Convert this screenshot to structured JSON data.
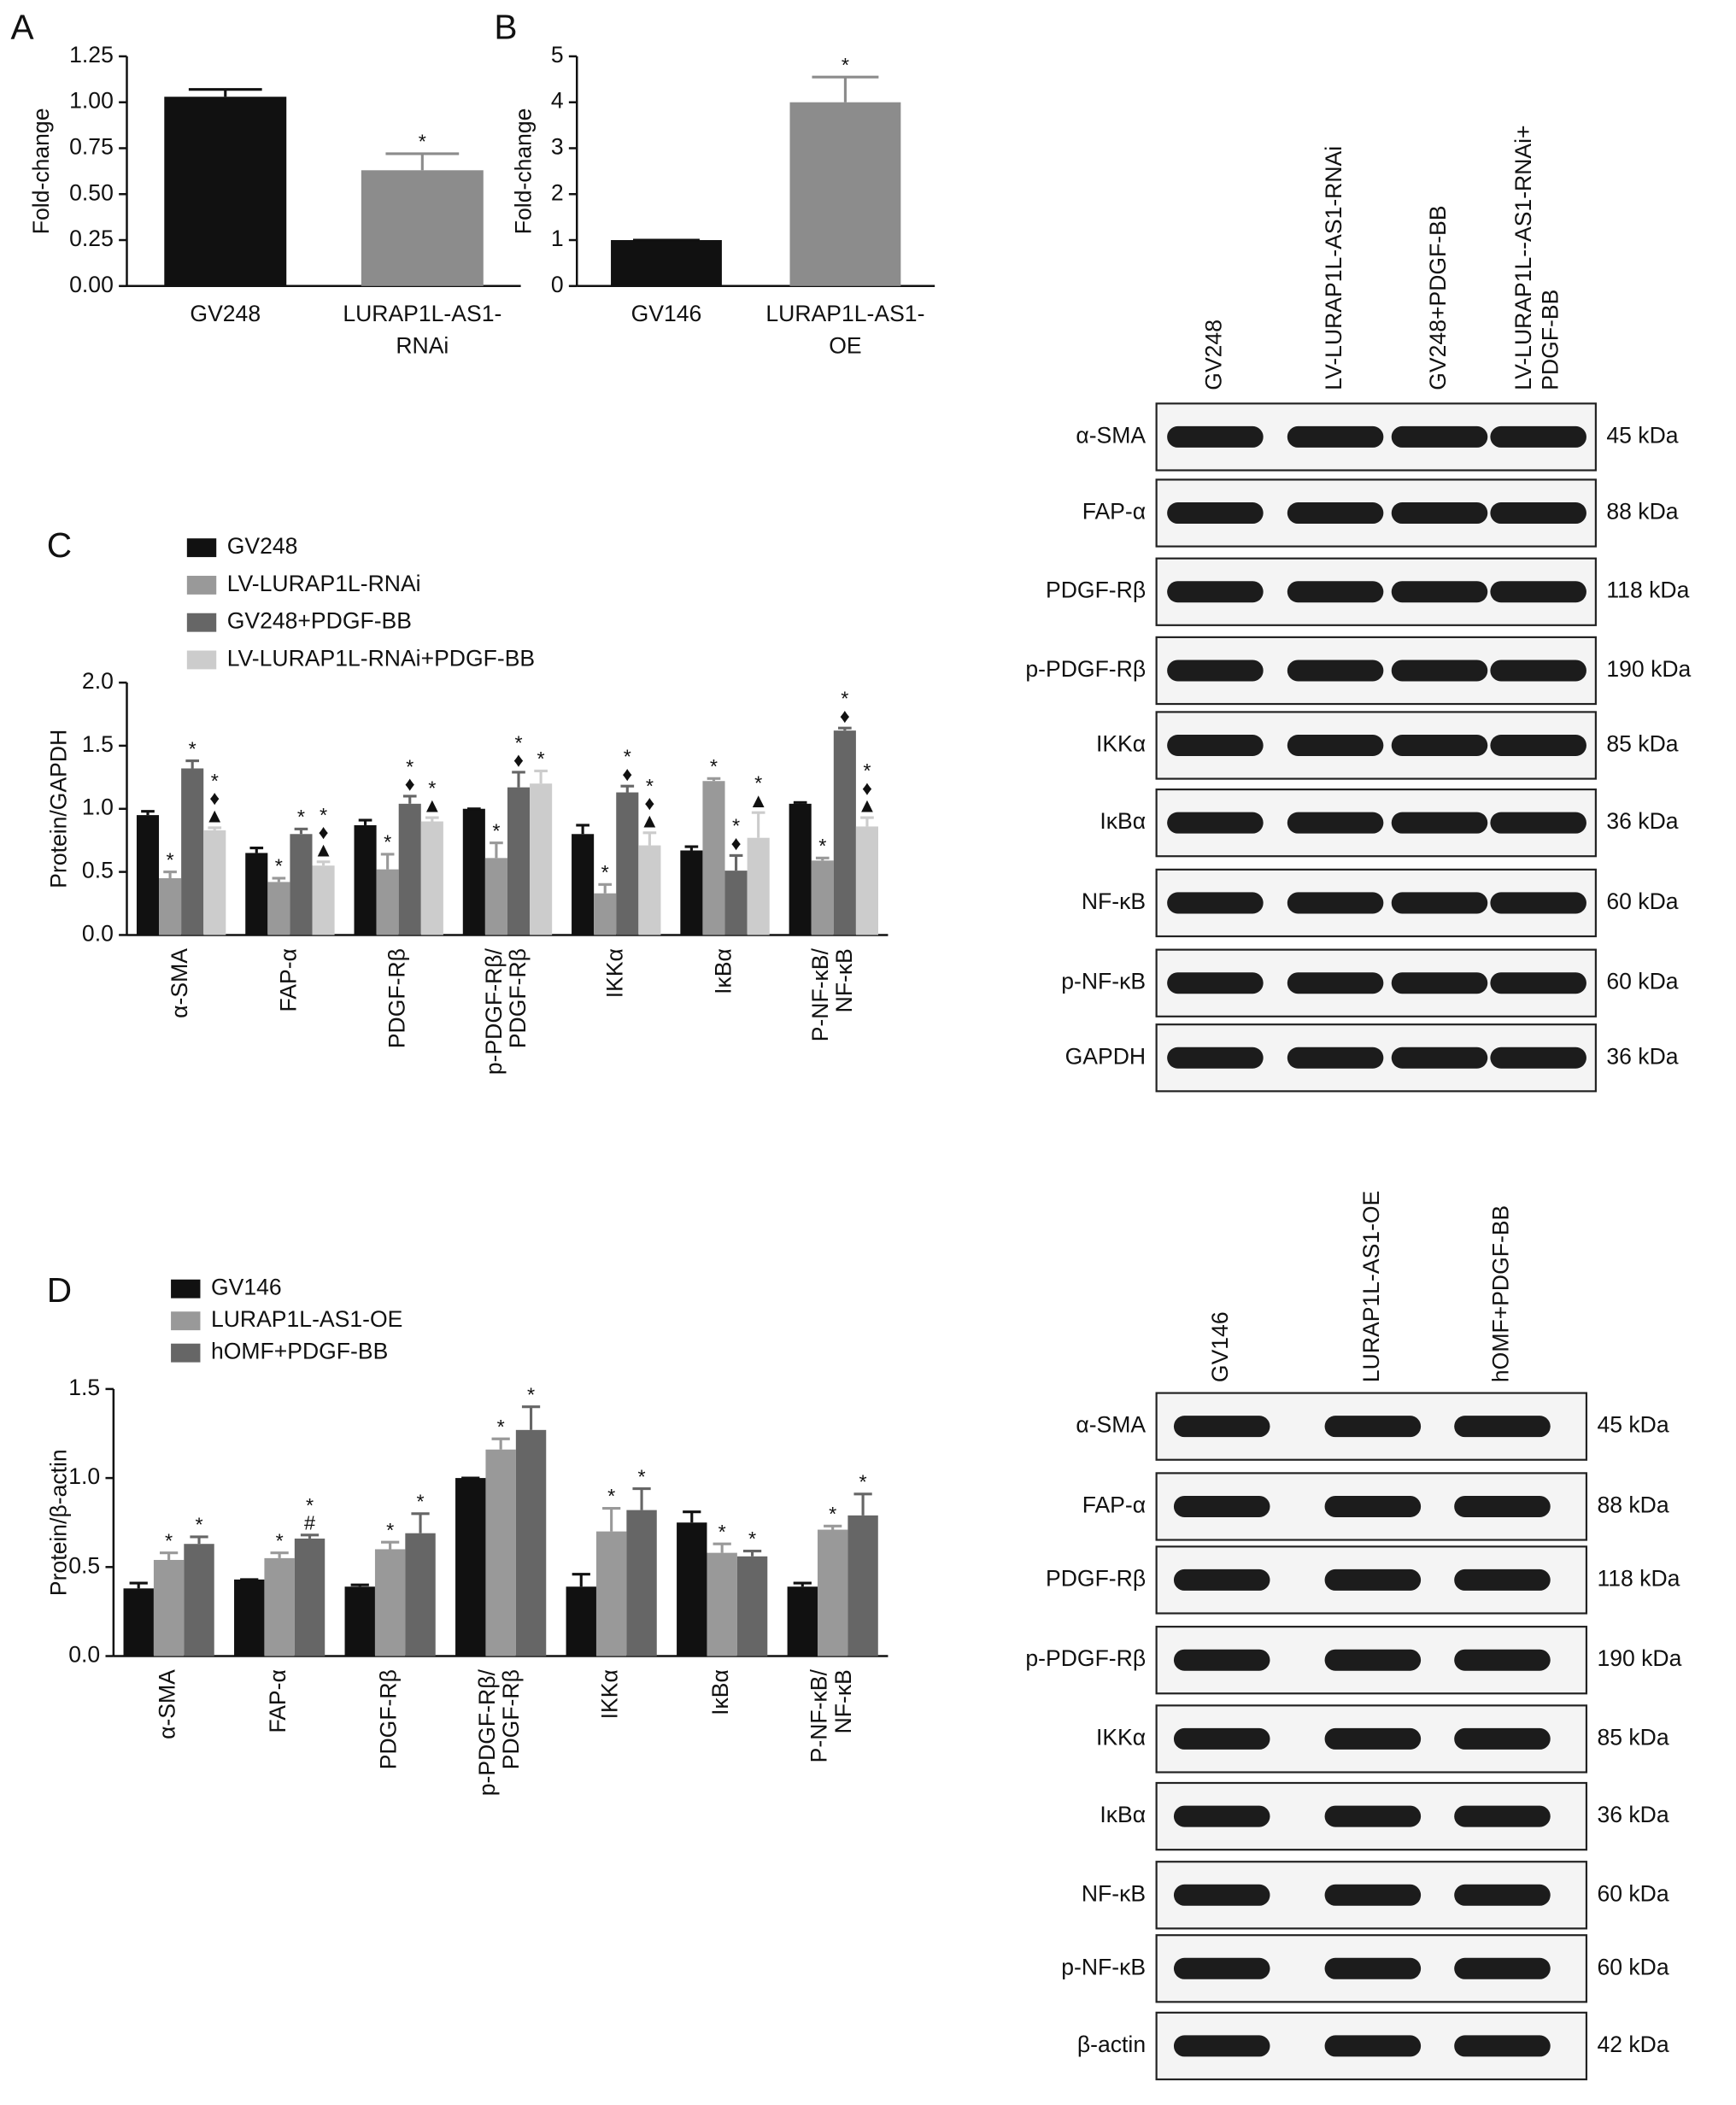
{
  "chart_data": [
    {
      "type": "bar",
      "panel": "A",
      "ylabel": "Fold-change",
      "categories": [
        "GV248",
        [
          "LURAP1L-AS1-",
          "RNAi"
        ]
      ],
      "values": [
        1.03,
        0.63
      ],
      "errors": [
        0.04,
        0.09
      ],
      "colors": [
        "#111111",
        "#8c8c8c"
      ],
      "annotations": [
        null,
        [
          "*"
        ]
      ],
      "ylim": [
        0,
        1.25
      ],
      "yticks": [
        {
          "value": 0,
          "label": "0.00"
        },
        {
          "value": 0.25,
          "label": "0.25"
        },
        {
          "value": 0.5,
          "label": "0.50"
        },
        {
          "value": 0.75,
          "label": "0.75"
        },
        {
          "value": 1,
          "label": "1.00"
        },
        {
          "value": 1.25,
          "label": "1.25"
        }
      ]
    },
    {
      "type": "bar",
      "panel": "B",
      "ylabel": "Fold-change",
      "categories": [
        "GV146",
        [
          "LURAP1L-AS1-",
          "OE"
        ]
      ],
      "values": [
        1.0,
        4.0
      ],
      "errors": [
        0,
        0.55
      ],
      "colors": [
        "#111111",
        "#8c8c8c"
      ],
      "annotations": [
        null,
        [
          "*"
        ]
      ],
      "ylim": [
        0,
        5
      ],
      "yticks": [
        0,
        1,
        2,
        3,
        4,
        5
      ]
    },
    {
      "type": "bar",
      "panel": "C",
      "ylabel": "Protein/GAPDH",
      "categories": [
        "α-SMA",
        "FAP-α",
        "PDGF-Rβ",
        [
          "p-PDGF-Rβ/",
          "PDGF-Rβ"
        ],
        "IKKα",
        "IκBα",
        [
          "P-NF-κB/",
          "NF-κB"
        ]
      ],
      "series": [
        {
          "name": "GV248",
          "color": "#111111",
          "values": [
            0.95,
            0.65,
            0.87,
            1.0,
            0.8,
            0.67,
            1.04
          ],
          "errors": [
            0.03,
            0.04,
            0.04,
            0,
            0.07,
            0.03,
            0.01
          ],
          "annotations": [
            null,
            null,
            null,
            null,
            null,
            null,
            null
          ]
        },
        {
          "name": "LV-LURAP1L-RNAi",
          "color": "#999999",
          "values": [
            0.45,
            0.42,
            0.52,
            0.61,
            0.33,
            1.22,
            0.59
          ],
          "errors": [
            0.05,
            0.03,
            0.12,
            0.12,
            0.07,
            0.02,
            0.02
          ],
          "annotations": [
            [
              "*"
            ],
            [
              "*"
            ],
            [
              "*"
            ],
            [
              "*"
            ],
            [
              "*"
            ],
            [
              "*"
            ],
            [
              "*"
            ]
          ]
        },
        {
          "name": "GV248+PDGF-BB",
          "color": "#666666",
          "values": [
            1.32,
            0.8,
            1.04,
            1.17,
            1.13,
            0.51,
            1.62
          ],
          "errors": [
            0.06,
            0.04,
            0.06,
            0.12,
            0.05,
            0.12,
            0.02
          ],
          "annotations": [
            [
              "*"
            ],
            [
              "*"
            ],
            [
              "*",
              "♦"
            ],
            [
              "*",
              "♦"
            ],
            [
              "*",
              "♦"
            ],
            [
              "*",
              "♦"
            ],
            [
              "*",
              "♦"
            ]
          ]
        },
        {
          "name": "LV-LURAP1L-RNAi+PDGF-BB",
          "color": "#cccccc",
          "values": [
            0.83,
            0.55,
            0.9,
            1.2,
            0.71,
            0.77,
            0.86
          ],
          "errors": [
            0.02,
            0.03,
            0.03,
            0.1,
            0.1,
            0.2,
            0.07
          ],
          "annotations": [
            [
              "*",
              "♦",
              "▲"
            ],
            [
              "*",
              "♦",
              "▲"
            ],
            [
              "*",
              "▲"
            ],
            [
              "*"
            ],
            [
              "*",
              "♦",
              "▲"
            ],
            [
              "*",
              "▲"
            ],
            [
              "*",
              "♦",
              "▲"
            ]
          ]
        }
      ],
      "ylim": [
        0,
        2
      ],
      "yticks": [
        {
          "value": 0,
          "label": "0.0"
        },
        0.5,
        {
          "value": 1,
          "label": "1.0"
        },
        1.5,
        {
          "value": 2,
          "label": "2.0"
        }
      ]
    },
    {
      "type": "bar",
      "panel": "D",
      "ylabel": "Protein/β-actin",
      "categories": [
        "α-SMA",
        "FAP-α",
        "PDGF-Rβ",
        [
          "p-PDGF-Rβ/",
          "PDGF-Rβ"
        ],
        "IKKα",
        "IκBα",
        [
          "P-NF-κB/",
          "NF-κB"
        ]
      ],
      "series": [
        {
          "name": "GV146",
          "color": "#111111",
          "values": [
            0.38,
            0.43,
            0.39,
            1.0,
            0.39,
            0.75,
            0.39
          ],
          "errors": [
            0.03,
            0,
            0.01,
            0,
            0.07,
            0.06,
            0.02
          ],
          "annotations": [
            null,
            null,
            null,
            null,
            null,
            null,
            null
          ]
        },
        {
          "name": "LURAP1L-AS1-OE",
          "color": "#999999",
          "values": [
            0.54,
            0.55,
            0.6,
            1.16,
            0.7,
            0.58,
            0.71
          ],
          "errors": [
            0.04,
            0.03,
            0.04,
            0.06,
            0.13,
            0.05,
            0.02
          ],
          "annotations": [
            [
              "*"
            ],
            [
              "*"
            ],
            [
              "*"
            ],
            [
              "*"
            ],
            [
              "*"
            ],
            [
              "*"
            ],
            [
              "*"
            ]
          ]
        },
        {
          "name": "hOMF+PDGF-BB",
          "color": "#666666",
          "values": [
            0.63,
            0.66,
            0.69,
            1.27,
            0.82,
            0.56,
            0.79
          ],
          "errors": [
            0.04,
            0.02,
            0.11,
            0.13,
            0.12,
            0.03,
            0.12
          ],
          "annotations": [
            [
              "*"
            ],
            [
              "*",
              "#"
            ],
            [
              "*"
            ],
            [
              "*"
            ],
            [
              "*"
            ],
            [
              "*"
            ],
            [
              "*"
            ]
          ]
        }
      ],
      "ylim": [
        0,
        1.5
      ],
      "yticks": [
        {
          "value": 0,
          "label": "0.0"
        },
        0.5,
        {
          "value": 1,
          "label": "1.0"
        },
        1.5
      ]
    }
  ],
  "blots": [
    {
      "lanes": [
        "GV248",
        "LV-LURAP1L-AS1-RNAi",
        "GV248+PDGF-BB",
        [
          "LV-LURAP1L--AS1-RNAi+",
          "PDGF-BB"
        ]
      ],
      "rows": [
        {
          "label": "α-SMA",
          "size": "45 kDa"
        },
        {
          "label": "FAP-α",
          "size": "88 kDa"
        },
        {
          "label": "PDGF-Rβ",
          "size": "118 kDa"
        },
        {
          "label": "p-PDGF-Rβ",
          "size": "190 kDa"
        },
        {
          "label": "IKKα",
          "size": "85 kDa"
        },
        {
          "label": "IκBα",
          "size": "36 kDa"
        },
        {
          "label": "NF-κB",
          "size": "60 kDa"
        },
        {
          "label": "p-NF-κB",
          "size": "60 kDa"
        },
        {
          "label": "GAPDH",
          "size": "36 kDa"
        }
      ]
    },
    {
      "lanes": [
        "GV146",
        "LURAP1L-AS1-OE",
        "hOMF+PDGF-BB"
      ],
      "rows": [
        {
          "label": "α-SMA",
          "size": "45 kDa"
        },
        {
          "label": "FAP-α",
          "size": "88 kDa"
        },
        {
          "label": "PDGF-Rβ",
          "size": "118 kDa"
        },
        {
          "label": "p-PDGF-Rβ",
          "size": "190 kDa"
        },
        {
          "label": "IKKα",
          "size": "85 kDa"
        },
        {
          "label": "IκBα",
          "size": "36 kDa"
        },
        {
          "label": "NF-κB",
          "size": "60 kDa"
        },
        {
          "label": "p-NF-κB",
          "size": "60 kDa"
        },
        {
          "label": "β-actin",
          "size": "42 kDa"
        }
      ]
    }
  ]
}
